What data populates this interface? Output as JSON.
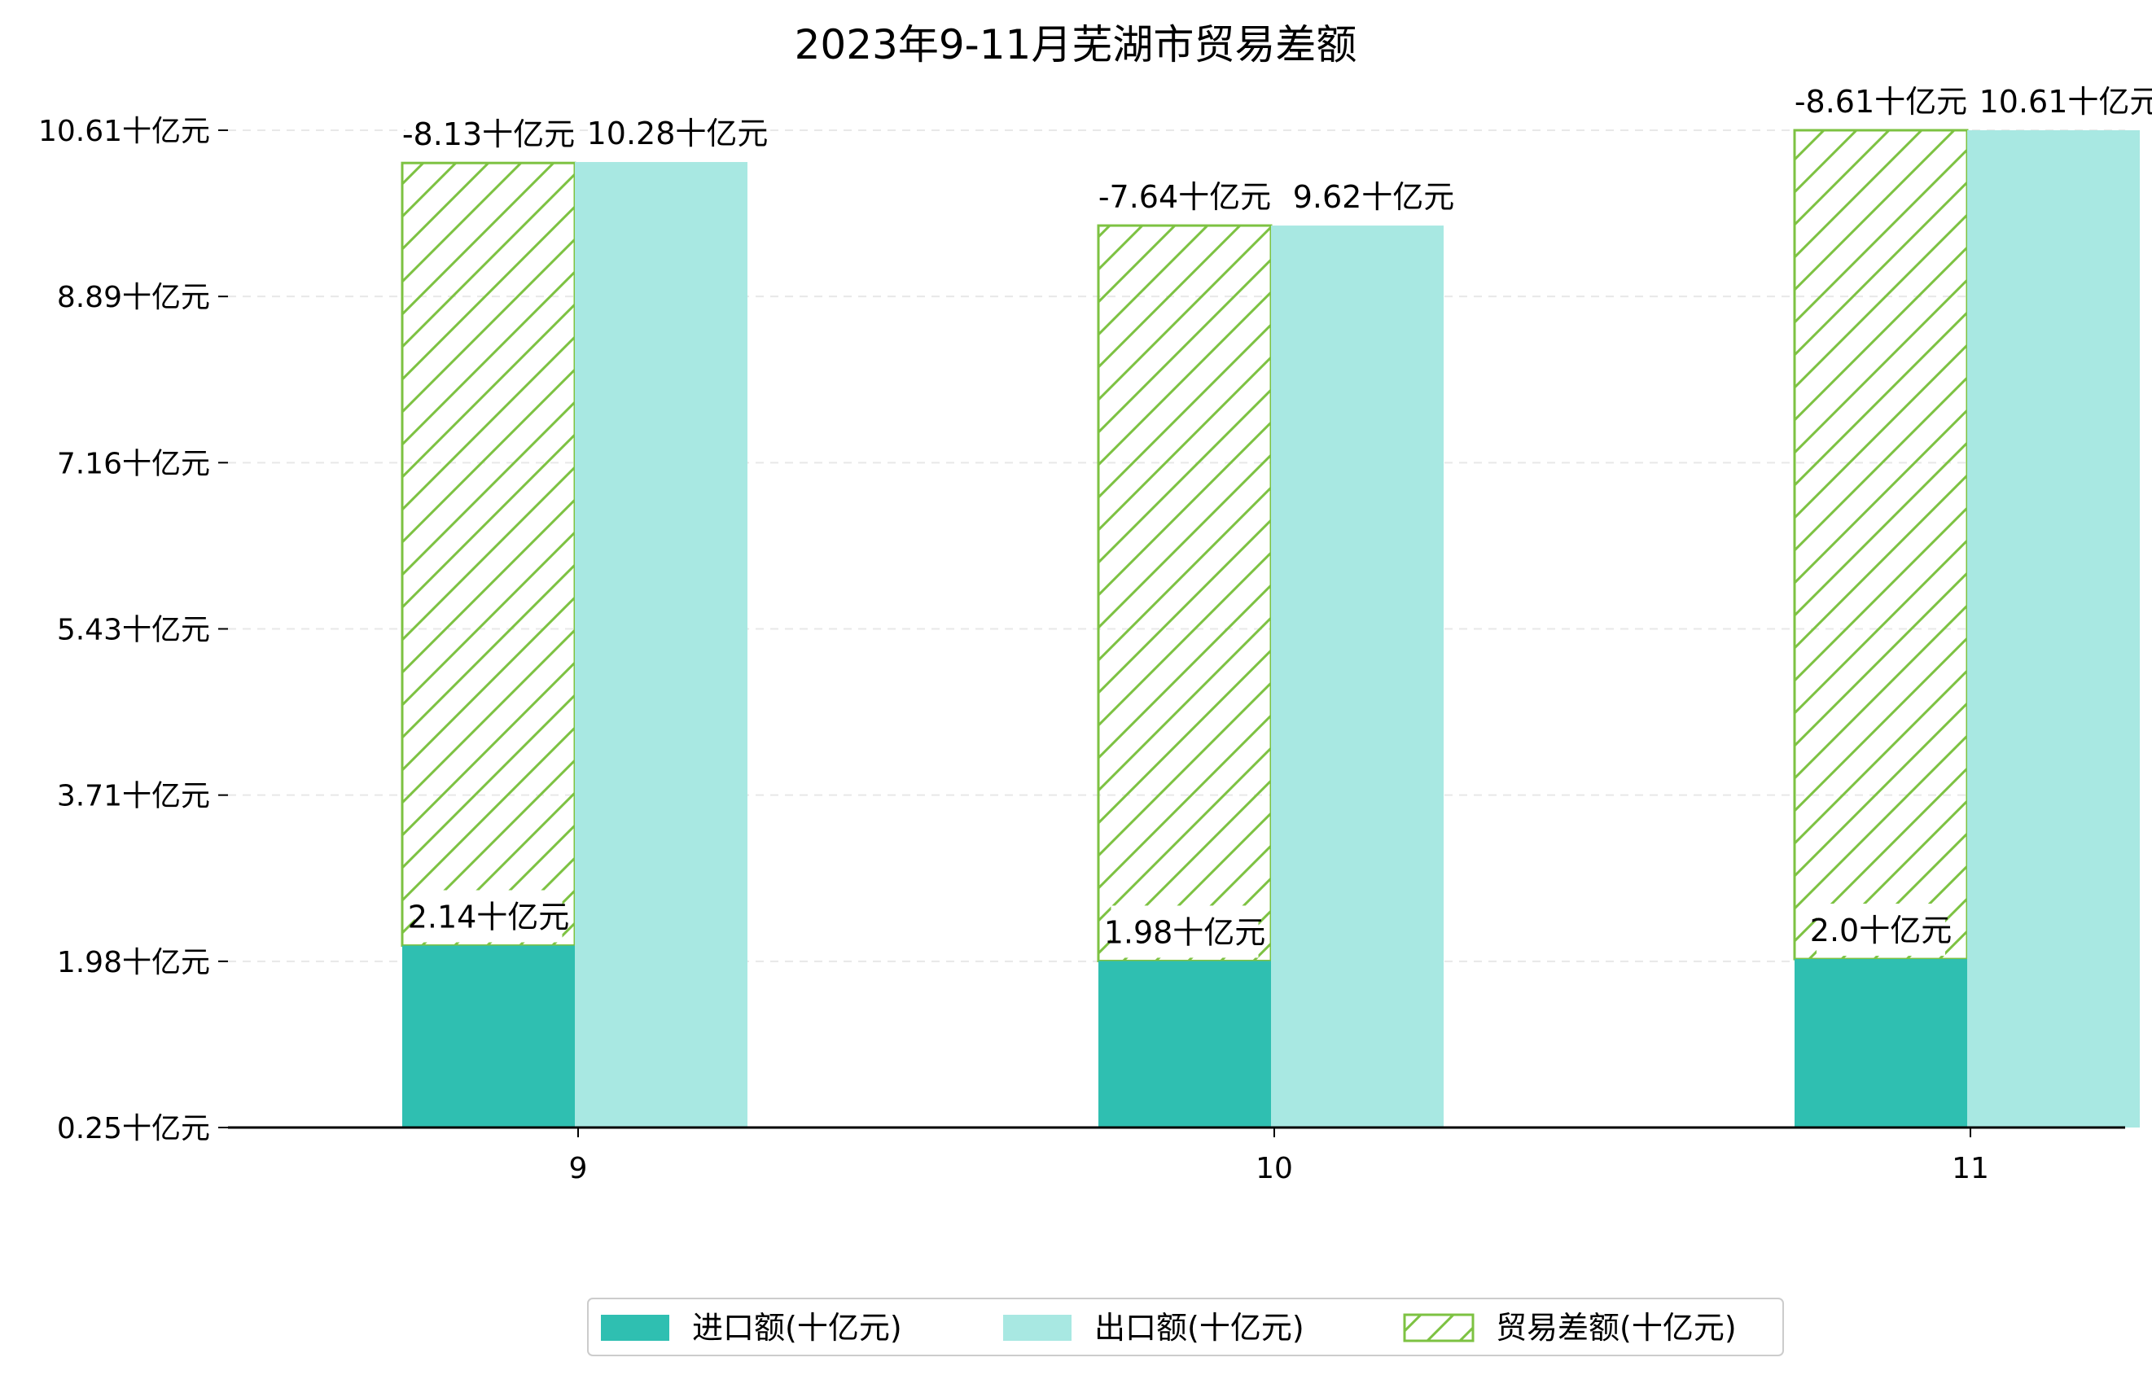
{
  "chart_data": {
    "type": "bar",
    "title": "2023年9-11月芜湖市贸易差额",
    "xlabel": "",
    "ylabel": "",
    "categories": [
      "9",
      "10",
      "11"
    ],
    "y_ticks": [
      "0.25十亿元",
      "1.98十亿元",
      "3.71十亿元",
      "5.43十亿元",
      "7.16十亿元",
      "8.89十亿元",
      "10.61十亿元"
    ],
    "ylim": [
      0.25,
      10.61
    ],
    "grid": "horizontal-dashed",
    "legend_position": "bottom",
    "series": [
      {
        "name": "进口额(十亿元)",
        "values": [
          2.14,
          1.98,
          2.0
        ],
        "labels": [
          "2.14十亿元",
          "1.98十亿元",
          "2.0十亿元"
        ],
        "color": "#2fbfb1"
      },
      {
        "name": "出口额(十亿元)",
        "values": [
          10.28,
          9.62,
          10.61
        ],
        "labels": [
          "10.28十亿元",
          "9.62十亿元",
          "10.61十亿元"
        ],
        "color": "#a8e8e2"
      },
      {
        "name": "贸易差额(十亿元)",
        "values": [
          -8.13,
          -7.64,
          -8.61
        ],
        "labels": [
          "-8.13十亿元",
          "-7.64十亿元",
          "-8.61十亿元"
        ],
        "color": "#7dc242",
        "pattern": "hatch"
      }
    ]
  }
}
